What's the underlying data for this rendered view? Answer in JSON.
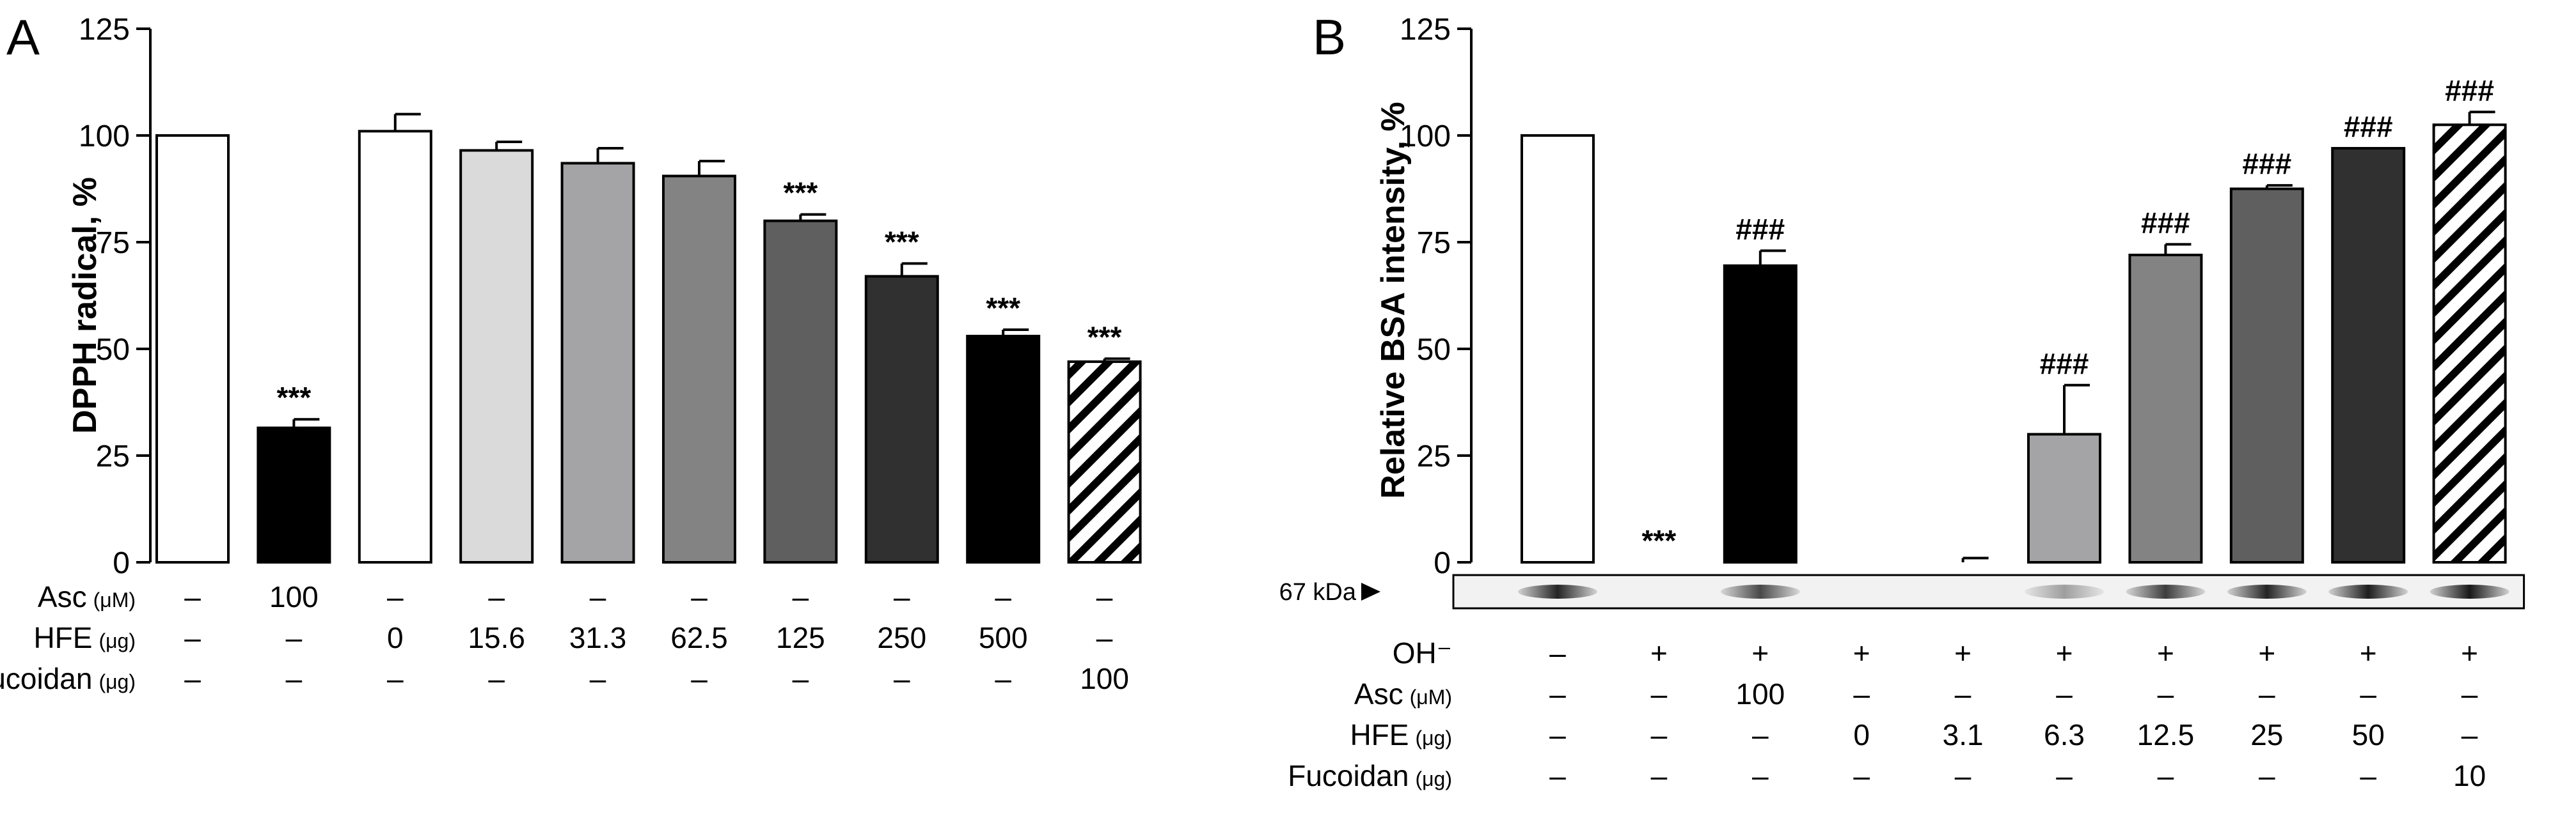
{
  "chart_data": [
    {
      "panel": "A",
      "type": "bar",
      "ylabel": "DPPH radical, %",
      "ylim": [
        0,
        125
      ],
      "yticks": [
        0,
        25,
        50,
        75,
        100,
        125
      ],
      "bars": [
        {
          "value": 100,
          "error": 0,
          "fill": "#ffffff",
          "hatch": false,
          "sig": ""
        },
        {
          "value": 31.5,
          "error": 2,
          "fill": "#000000",
          "hatch": false,
          "sig": "***"
        },
        {
          "value": 101,
          "error": 4,
          "fill": "#ffffff",
          "hatch": false,
          "sig": ""
        },
        {
          "value": 96.5,
          "error": 2,
          "fill": "#dadada",
          "hatch": false,
          "sig": ""
        },
        {
          "value": 93.5,
          "error": 3.5,
          "fill": "#a4a4a6",
          "hatch": false,
          "sig": ""
        },
        {
          "value": 90.5,
          "error": 3.5,
          "fill": "#838383",
          "hatch": false,
          "sig": ""
        },
        {
          "value": 80,
          "error": 1.5,
          "fill": "#5f5f5f",
          "hatch": false,
          "sig": "***"
        },
        {
          "value": 67,
          "error": 3,
          "fill": "#303030",
          "hatch": false,
          "sig": "***"
        },
        {
          "value": 53,
          "error": 1.5,
          "fill": "#000000",
          "hatch": false,
          "sig": "***"
        },
        {
          "value": 47,
          "error": 0.7,
          "fill": "#ffffff",
          "hatch": true,
          "sig": "***"
        }
      ],
      "conditions": [
        {
          "label": "Asc",
          "unit": "(μM)",
          "values": [
            "–",
            "100",
            "–",
            "–",
            "–",
            "–",
            "–",
            "–",
            "–",
            "–"
          ]
        },
        {
          "label": "HFE",
          "unit": "(μg)",
          "values": [
            "–",
            "–",
            "0",
            "15.6",
            "31.3",
            "62.5",
            "125",
            "250",
            "500",
            "–"
          ]
        },
        {
          "label": "Fucoidan",
          "unit": "(μg)",
          "values": [
            "–",
            "–",
            "–",
            "–",
            "–",
            "–",
            "–",
            "–",
            "–",
            "100"
          ]
        }
      ]
    },
    {
      "panel": "B",
      "type": "bar",
      "ylabel": "Relative BSA intensity, %",
      "ylim": [
        0,
        125
      ],
      "yticks": [
        0,
        25,
        50,
        75,
        100,
        125
      ],
      "blot_label": "67 kDa",
      "bars": [
        {
          "value": 100,
          "error": 0,
          "fill": "#ffffff",
          "hatch": false,
          "sig": "",
          "band": 0.85
        },
        {
          "value": 0,
          "error": 0,
          "fill": "#ffffff",
          "hatch": false,
          "sig": "***",
          "band": 0
        },
        {
          "value": 69.5,
          "error": 3.5,
          "fill": "#000000",
          "hatch": false,
          "sig": "###",
          "band": 0.7
        },
        {
          "value": 0,
          "error": 0,
          "fill": "#ffffff",
          "hatch": false,
          "sig": "",
          "band": 0
        },
        {
          "value": 0,
          "error": 1,
          "fill": "#ffffff",
          "hatch": false,
          "sig": "",
          "band": 0
        },
        {
          "value": 30,
          "error": 11.5,
          "fill": "#a4a4a6",
          "hatch": false,
          "sig": "###",
          "band": 0.35
        },
        {
          "value": 72,
          "error": 2.5,
          "fill": "#838383",
          "hatch": false,
          "sig": "###",
          "band": 0.75
        },
        {
          "value": 87.5,
          "error": 0.8,
          "fill": "#5f5f5f",
          "hatch": false,
          "sig": "###",
          "band": 0.85
        },
        {
          "value": 97,
          "error": 0,
          "fill": "#303030",
          "hatch": false,
          "sig": "###",
          "band": 0.88
        },
        {
          "value": 102.5,
          "error": 3,
          "fill": "#ffffff",
          "hatch": true,
          "sig": "###",
          "band": 0.9
        }
      ],
      "conditions": [
        {
          "label": "OH⁻",
          "unit": "",
          "values": [
            "–",
            "+",
            "+",
            "+",
            "+",
            "+",
            "+",
            "+",
            "+",
            "+"
          ]
        },
        {
          "label": "Asc",
          "unit": "(μM)",
          "values": [
            "–",
            "–",
            "100",
            "–",
            "–",
            "–",
            "–",
            "–",
            "–",
            "–"
          ]
        },
        {
          "label": "HFE",
          "unit": "(μg)",
          "values": [
            "–",
            "–",
            "–",
            "0",
            "3.1",
            "6.3",
            "12.5",
            "25",
            "50",
            "–"
          ]
        },
        {
          "label": "Fucoidan",
          "unit": "(μg)",
          "values": [
            "–",
            "–",
            "–",
            "–",
            "–",
            "–",
            "–",
            "–",
            "–",
            "10"
          ]
        }
      ]
    }
  ]
}
